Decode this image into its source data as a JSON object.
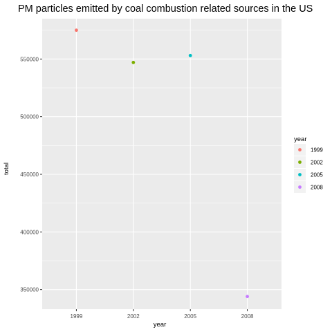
{
  "chart_data": {
    "type": "scatter",
    "title": "PM particles emitted by coal combustion related sources in the US",
    "xlabel": "year",
    "ylabel": "total",
    "categories": [
      "1999",
      "2002",
      "2005",
      "2008"
    ],
    "values": [
      575000,
      547000,
      553000,
      344000
    ],
    "ylim": [
      333000,
      585000
    ],
    "y_ticks": [
      350000,
      400000,
      450000,
      500000,
      550000
    ],
    "y_tick_labels": [
      "350000",
      "400000",
      "450000",
      "500000",
      "550000"
    ],
    "grid": true,
    "legend": {
      "title": "year",
      "position": "right",
      "entries": [
        "1999",
        "2002",
        "2005",
        "2008"
      ]
    },
    "colors": [
      "#F8766D",
      "#7CAE00",
      "#00BFC4",
      "#C77CFF"
    ],
    "panel_background": "#EBEBEB",
    "grid_color": "#FFFFFF"
  }
}
